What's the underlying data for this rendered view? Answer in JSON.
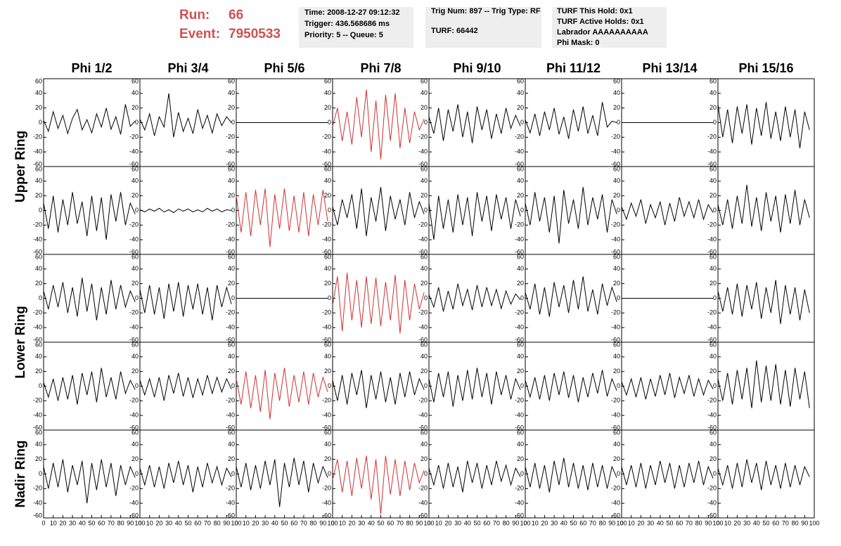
{
  "header": {
    "run_label": "Run:",
    "run": 66,
    "event_label": "Event:",
    "event": 7950533,
    "box1": [
      "Time: 2008-12-27 09:12:32",
      "Trigger: 436.568686 ms",
      "Priority: 5 -- Queue: 5"
    ],
    "box2": [
      "Trig Num: 897 -- Trig Type: RF",
      "TURF: 66442"
    ],
    "box3": [
      "TURF This Hold: 0x1",
      "TURF Active Holds: 0x1",
      "Labrador AAAAAAAAAA",
      "Phi Mask: 0"
    ]
  },
  "columns": [
    "Phi 1/2",
    "Phi 3/4",
    "Phi 5/6",
    "Phi 7/8",
    "Phi 9/10",
    "Phi 11/12",
    "Phi 13/14",
    "Phi 15/16"
  ],
  "ring_labels": [
    "Upper Ring",
    "Lower Ring",
    "Nadir Ring"
  ],
  "xlim": [
    0,
    100
  ],
  "ylim": [
    -60,
    60
  ],
  "xticks": [
    0,
    10,
    20,
    30,
    40,
    50,
    60,
    70,
    80,
    90,
    100
  ],
  "yticks": [
    -60,
    -40,
    -20,
    0,
    20,
    40,
    60
  ],
  "x": [
    0,
    5,
    10,
    15,
    20,
    25,
    30,
    35,
    40,
    45,
    50,
    55,
    60,
    65,
    70,
    75,
    80,
    85,
    90,
    95
  ],
  "panels": [
    [
      {
        "color": "#000000",
        "values": [
          3,
          -12,
          15,
          -8,
          10,
          -15,
          6,
          18,
          -10,
          4,
          -14,
          12,
          -6,
          20,
          -9,
          8,
          -16,
          25,
          -5,
          2
        ]
      },
      {
        "color": "#000000",
        "values": [
          5,
          -10,
          12,
          -18,
          8,
          -6,
          40,
          -20,
          14,
          -12,
          6,
          -15,
          18,
          -8,
          10,
          -14,
          12,
          -4,
          8,
          0
        ]
      },
      {
        "color": "#000000",
        "values": [
          0,
          0,
          0,
          0,
          0,
          0,
          0,
          0,
          0,
          0,
          0,
          0,
          0,
          0,
          0,
          0,
          0,
          0,
          0,
          0
        ]
      },
      {
        "color": "#d03030",
        "values": [
          -5,
          20,
          -25,
          15,
          -30,
          35,
          -20,
          45,
          -40,
          30,
          -50,
          38,
          -25,
          40,
          -35,
          20,
          -28,
          15,
          -10,
          5
        ]
      },
      {
        "color": "#000000",
        "values": [
          8,
          -15,
          20,
          -25,
          18,
          -12,
          25,
          -20,
          15,
          -28,
          22,
          -10,
          18,
          -22,
          12,
          -15,
          20,
          -8,
          10,
          -5
        ]
      },
      {
        "color": "#000000",
        "values": [
          4,
          -14,
          12,
          -18,
          15,
          -10,
          20,
          -16,
          8,
          -22,
          18,
          -12,
          22,
          -15,
          10,
          -18,
          28,
          -6,
          2,
          0
        ]
      },
      {
        "color": "#000000",
        "values": [
          0,
          0,
          0,
          0,
          0,
          0,
          0,
          0,
          0,
          0,
          0,
          0,
          0,
          0,
          0,
          0,
          0,
          0,
          0,
          0
        ]
      },
      {
        "color": "#000000",
        "values": [
          25,
          -20,
          18,
          -28,
          22,
          -15,
          25,
          -30,
          20,
          -18,
          28,
          -22,
          15,
          -25,
          22,
          -20,
          18,
          -35,
          15,
          -10
        ]
      }
    ],
    [
      {
        "color": "#000000",
        "values": [
          10,
          -25,
          20,
          -30,
          15,
          -20,
          25,
          -18,
          12,
          -35,
          20,
          -28,
          18,
          -40,
          22,
          -15,
          25,
          -20,
          10,
          -5
        ]
      },
      {
        "color": "#000000",
        "values": [
          1,
          -2,
          2,
          -1,
          3,
          -2,
          1,
          -3,
          2,
          -1,
          2,
          -2,
          1,
          -2,
          3,
          -1,
          2,
          -2,
          1,
          0
        ]
      },
      {
        "color": "#d03030",
        "values": [
          20,
          -30,
          25,
          -35,
          28,
          -20,
          30,
          -50,
          22,
          -25,
          30,
          -28,
          20,
          -30,
          25,
          -35,
          22,
          -20,
          28,
          -15
        ]
      },
      {
        "color": "#000000",
        "values": [
          5,
          -20,
          15,
          -10,
          22,
          -25,
          30,
          -35,
          18,
          -15,
          32,
          -28,
          20,
          -12,
          15,
          -20,
          25,
          -10,
          12,
          -5
        ]
      },
      {
        "color": "#000000",
        "values": [
          10,
          -40,
          20,
          -25,
          15,
          -30,
          22,
          -20,
          18,
          -35,
          25,
          -15,
          20,
          -28,
          22,
          -12,
          18,
          -25,
          15,
          -8
        ]
      },
      {
        "color": "#000000",
        "values": [
          10,
          -20,
          25,
          -15,
          18,
          -30,
          20,
          -45,
          28,
          -18,
          15,
          -25,
          32,
          -20,
          18,
          -12,
          22,
          -30,
          15,
          -5
        ]
      },
      {
        "color": "#000000",
        "values": [
          5,
          -12,
          10,
          -8,
          15,
          -18,
          8,
          -10,
          12,
          -20,
          10,
          -15,
          18,
          -8,
          12,
          -10,
          15,
          -12,
          8,
          -3
        ]
      },
      {
        "color": "#000000",
        "values": [
          8,
          -20,
          15,
          -25,
          20,
          -18,
          35,
          -22,
          18,
          -28,
          25,
          -15,
          20,
          -30,
          22,
          -18,
          28,
          -20,
          15,
          -10
        ]
      }
    ],
    [
      {
        "color": "#000000",
        "values": [
          10,
          -15,
          18,
          -12,
          22,
          -20,
          15,
          -25,
          28,
          -18,
          20,
          -30,
          15,
          -22,
          25,
          -15,
          18,
          -12,
          10,
          -5
        ]
      },
      {
        "color": "#000000",
        "values": [
          12,
          -20,
          18,
          -22,
          15,
          -28,
          20,
          -18,
          22,
          -25,
          18,
          -15,
          20,
          -22,
          15,
          -30,
          18,
          -12,
          15,
          -8
        ]
      },
      {
        "color": "#000000",
        "values": [
          0,
          0,
          0,
          0,
          0,
          0,
          0,
          0,
          0,
          0,
          0,
          0,
          0,
          0,
          0,
          0,
          0,
          0,
          0,
          0
        ]
      },
      {
        "color": "#d03030",
        "values": [
          -10,
          30,
          -45,
          35,
          -30,
          25,
          -40,
          30,
          -35,
          28,
          -38,
          22,
          -30,
          32,
          -48,
          25,
          -30,
          20,
          -15,
          8
        ]
      },
      {
        "color": "#000000",
        "values": [
          5,
          -12,
          15,
          -18,
          10,
          -15,
          20,
          -10,
          12,
          -16,
          18,
          -12,
          15,
          -10,
          12,
          -14,
          10,
          -8,
          6,
          -2
        ]
      },
      {
        "color": "#000000",
        "values": [
          8,
          -15,
          20,
          -22,
          15,
          -25,
          22,
          -12,
          18,
          -20,
          25,
          -15,
          30,
          -18,
          12,
          -22,
          20,
          -10,
          15,
          -5
        ]
      },
      {
        "color": "#000000",
        "values": [
          0,
          0,
          0,
          0,
          0,
          0,
          0,
          0,
          0,
          0,
          0,
          0,
          0,
          0,
          0,
          0,
          0,
          0,
          0,
          0
        ]
      },
      {
        "color": "#000000",
        "values": [
          10,
          -18,
          15,
          -22,
          20,
          -25,
          18,
          -15,
          22,
          -28,
          15,
          -20,
          25,
          -35,
          18,
          -22,
          15,
          -30,
          12,
          -20
        ]
      }
    ],
    [
      {
        "color": "#000000",
        "values": [
          5,
          -15,
          10,
          -20,
          12,
          -18,
          15,
          -25,
          18,
          -12,
          20,
          -22,
          25,
          -15,
          12,
          -18,
          20,
          -10,
          8,
          -5
        ]
      },
      {
        "color": "#000000",
        "values": [
          8,
          -12,
          10,
          -15,
          12,
          -20,
          15,
          -10,
          18,
          -14,
          12,
          -16,
          10,
          -12,
          15,
          -10,
          12,
          -8,
          10,
          -4
        ]
      },
      {
        "color": "#d03030",
        "values": [
          10,
          -25,
          20,
          -30,
          15,
          -35,
          22,
          -45,
          18,
          -20,
          25,
          -28,
          15,
          -22,
          20,
          -25,
          18,
          -15,
          12,
          -8
        ]
      },
      {
        "color": "#000000",
        "values": [
          8,
          -20,
          15,
          -25,
          18,
          -12,
          22,
          -30,
          15,
          -18,
          20,
          -22,
          12,
          -25,
          18,
          -15,
          20,
          -12,
          10,
          -5
        ]
      },
      {
        "color": "#000000",
        "values": [
          10,
          -22,
          18,
          -15,
          20,
          -28,
          15,
          -20,
          22,
          -18,
          25,
          -15,
          18,
          -25,
          20,
          -12,
          15,
          -18,
          10,
          -5
        ]
      },
      {
        "color": "#000000",
        "values": [
          8,
          -15,
          12,
          -18,
          15,
          -20,
          18,
          -12,
          20,
          -16,
          15,
          -22,
          12,
          -15,
          18,
          -10,
          22,
          -14,
          10,
          -6
        ]
      },
      {
        "color": "#000000",
        "values": [
          6,
          -12,
          10,
          -15,
          12,
          -18,
          10,
          -14,
          15,
          -12,
          18,
          -16,
          12,
          -10,
          15,
          -14,
          10,
          -12,
          8,
          -4
        ]
      },
      {
        "color": "#000000",
        "values": [
          10,
          -20,
          18,
          -25,
          22,
          -18,
          25,
          -30,
          35,
          -22,
          28,
          -20,
          30,
          -25,
          22,
          -28,
          25,
          -18,
          20,
          -30
        ]
      }
    ],
    [
      {
        "color": "#000000",
        "values": [
          10,
          -20,
          15,
          -18,
          20,
          -25,
          12,
          -15,
          18,
          -40,
          15,
          -22,
          20,
          -18,
          15,
          -30,
          12,
          -15,
          10,
          -5
        ]
      },
      {
        "color": "#000000",
        "values": [
          8,
          -15,
          12,
          -18,
          10,
          -20,
          15,
          -12,
          18,
          -15,
          12,
          -25,
          10,
          -18,
          15,
          -12,
          10,
          -15,
          8,
          -4
        ]
      },
      {
        "color": "#000000",
        "values": [
          10,
          -18,
          15,
          -22,
          12,
          -20,
          18,
          -15,
          20,
          -45,
          15,
          -18,
          22,
          -15,
          18,
          -25,
          15,
          -12,
          10,
          -5
        ]
      },
      {
        "color": "#d03030",
        "values": [
          -8,
          20,
          -25,
          18,
          -30,
          22,
          -20,
          25,
          -35,
          20,
          -55,
          25,
          -28,
          20,
          -30,
          18,
          -22,
          15,
          -12,
          5
        ]
      },
      {
        "color": "#000000",
        "values": [
          8,
          -15,
          12,
          -20,
          15,
          -18,
          10,
          -25,
          18,
          -12,
          15,
          -20,
          12,
          -15,
          18,
          -10,
          12,
          -15,
          8,
          -4
        ]
      },
      {
        "color": "#000000",
        "values": [
          10,
          -18,
          15,
          -20,
          12,
          -25,
          18,
          -15,
          22,
          -18,
          15,
          -20,
          12,
          -22,
          15,
          -18,
          12,
          -20,
          10,
          -5
        ]
      },
      {
        "color": "#000000",
        "values": [
          10,
          -15,
          12,
          -18,
          15,
          -20,
          12,
          -15,
          18,
          -12,
          15,
          -20,
          12,
          -18,
          15,
          -12,
          18,
          -15,
          10,
          -6
        ]
      },
      {
        "color": "#000000",
        "values": [
          8,
          -15,
          12,
          -20,
          15,
          -18,
          20,
          -12,
          15,
          -22,
          18,
          -15,
          12,
          -20,
          15,
          -18,
          12,
          -15,
          10,
          -4
        ]
      }
    ]
  ]
}
